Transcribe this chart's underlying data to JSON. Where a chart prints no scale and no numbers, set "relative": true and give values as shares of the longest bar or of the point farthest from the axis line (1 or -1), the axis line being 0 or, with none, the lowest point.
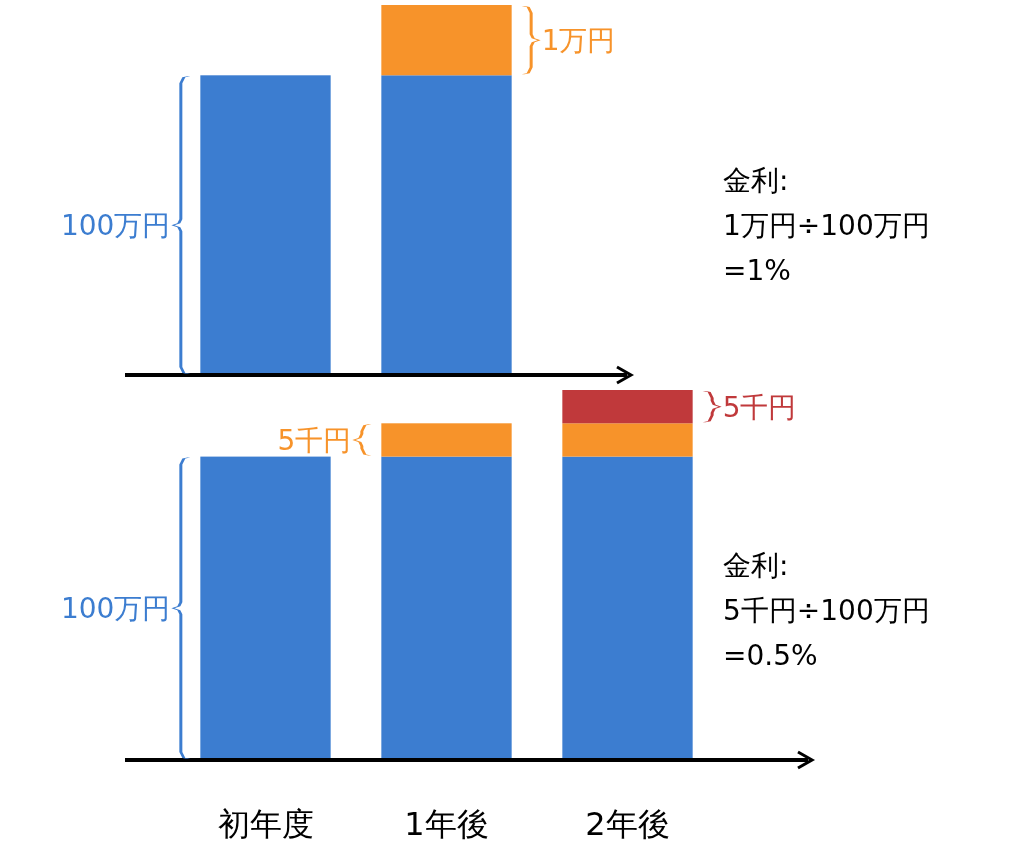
{
  "chart_data": [
    {
      "type": "bar",
      "relative": true,
      "stacked": true,
      "categories": [
        null,
        null
      ],
      "series": [
        {
          "color": "#3c7dd0",
          "values": [
            0.81,
            0.81
          ]
        },
        {
          "color": "#f7932a",
          "values": [
            null,
            0.19
          ]
        }
      ],
      "annotations": [
        "100万円",
        "1万円",
        "金利:",
        "1万円÷100万円",
        "=1%"
      ]
    },
    {
      "type": "bar",
      "relative": true,
      "stacked": true,
      "tick_labels": "x",
      "categories": [
        "初年度",
        "1年後",
        "2年後"
      ],
      "series": [
        {
          "color": "#3c7dd0",
          "values": [
            0.82,
            0.82,
            0.82
          ]
        },
        {
          "color": "#f7932a",
          "values": [
            null,
            0.09,
            0.09
          ]
        },
        {
          "color": "#c0393b",
          "values": [
            null,
            null,
            0.09
          ]
        }
      ],
      "annotations": [
        "100万円",
        "5千円",
        "5千円",
        "金利:",
        "5千円÷100万円",
        "=0.5%"
      ]
    }
  ]
}
